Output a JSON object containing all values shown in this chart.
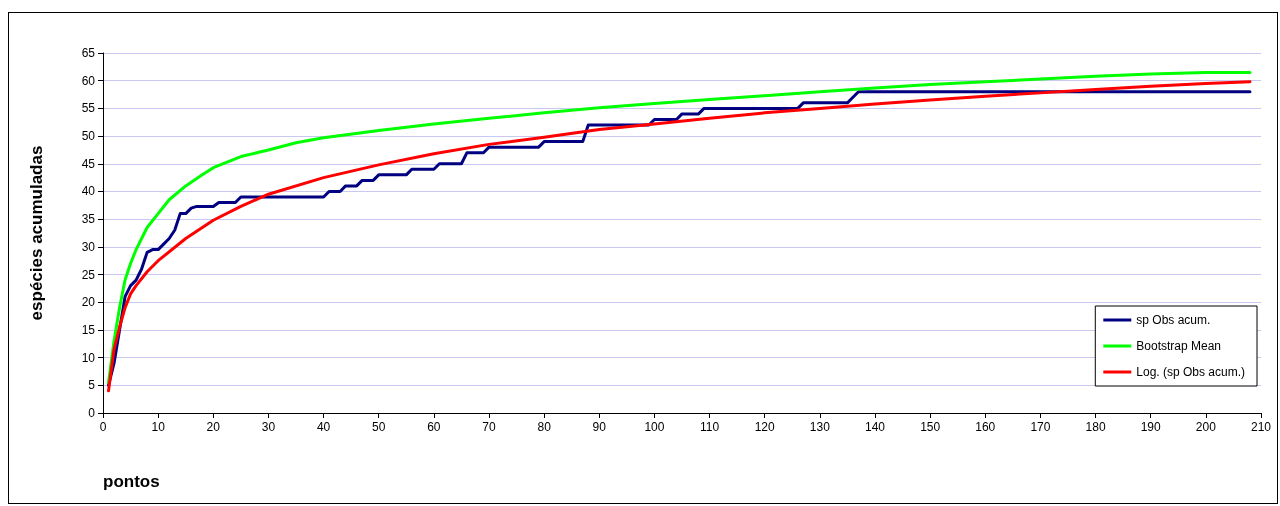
{
  "chart_data": {
    "type": "line",
    "xlabel": "pontos",
    "ylabel": "espécies acumuladas",
    "xlim": [
      0,
      210
    ],
    "xticks": [
      0,
      10,
      20,
      30,
      40,
      50,
      60,
      70,
      80,
      90,
      100,
      110,
      120,
      130,
      140,
      150,
      160,
      170,
      180,
      190,
      200,
      210
    ],
    "ylim": [
      0,
      65
    ],
    "yticks": [
      0,
      5,
      10,
      15,
      20,
      25,
      30,
      35,
      40,
      45,
      50,
      55,
      60,
      65
    ],
    "grid": "y",
    "legend": "bottom right",
    "marker": "none",
    "line_style": "solid",
    "series": [
      {
        "name": "sp Obs acum.",
        "color": "#000080",
        "x": [
          1,
          2,
          3,
          4,
          5,
          6,
          7,
          8,
          9,
          10,
          11,
          12,
          13,
          14,
          15,
          16,
          17,
          20,
          21,
          24,
          25,
          40,
          41,
          43,
          44,
          46,
          47,
          49,
          50,
          55,
          56,
          60,
          61,
          65,
          66,
          69,
          70,
          79,
          80,
          87,
          88,
          99,
          100,
          104,
          105,
          108,
          109,
          126,
          127,
          135,
          136,
          137,
          208
        ],
        "values": [
          5,
          9,
          15,
          21,
          23,
          24,
          26,
          29,
          29.5,
          29.5,
          30.5,
          31.5,
          33,
          36,
          36,
          37,
          37.3,
          37.3,
          38,
          38,
          39,
          39,
          40,
          40,
          41,
          41,
          42,
          42,
          43,
          43,
          44,
          44,
          45,
          45,
          47,
          47,
          48,
          48,
          49,
          49,
          52,
          52,
          53,
          53,
          54,
          54,
          55,
          55,
          56,
          56,
          57,
          58,
          58
        ]
      },
      {
        "name": "Bootstrap Mean",
        "color": "#00ff00",
        "x": [
          1,
          2,
          3,
          4,
          5,
          6,
          7,
          8,
          10,
          12,
          15,
          18,
          20,
          25,
          30,
          35,
          40,
          50,
          60,
          70,
          80,
          90,
          100,
          110,
          120,
          130,
          140,
          150,
          160,
          170,
          180,
          190,
          200,
          208
        ],
        "values": [
          5.5,
          13,
          19,
          24,
          27,
          29.5,
          31.5,
          33.5,
          36,
          38.5,
          41,
          43,
          44.3,
          46.3,
          47.5,
          48.8,
          49.7,
          51,
          52.2,
          53.2,
          54.2,
          55.1,
          55.9,
          56.6,
          57.3,
          58,
          58.7,
          59.3,
          59.8,
          60.3,
          60.8,
          61.2,
          61.5,
          61.5
        ]
      },
      {
        "name": "Log. (sp Obs acum.)",
        "color": "#ff0000",
        "x": [
          1,
          2,
          3,
          4,
          5,
          6,
          8,
          10,
          15,
          20,
          25,
          30,
          40,
          50,
          60,
          70,
          80,
          90,
          100,
          110,
          120,
          130,
          140,
          150,
          160,
          170,
          180,
          190,
          200,
          208
        ],
        "values": [
          4,
          11.5,
          15.5,
          19,
          21.5,
          23,
          25.5,
          27.5,
          31.5,
          34.8,
          37.3,
          39.5,
          42.5,
          44.8,
          46.8,
          48.5,
          49.8,
          51.2,
          52.2,
          53.2,
          54.2,
          55,
          55.8,
          56.5,
          57.2,
          57.8,
          58.4,
          59,
          59.5,
          59.8
        ]
      }
    ]
  }
}
